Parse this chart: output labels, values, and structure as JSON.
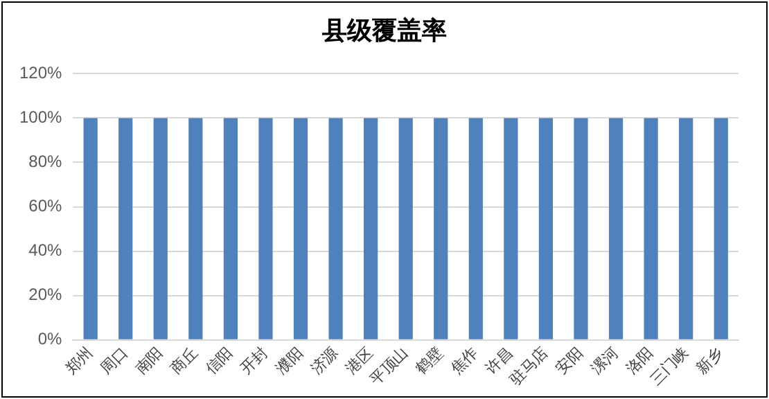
{
  "chart_data": {
    "type": "bar",
    "title": "县级覆盖率",
    "categories": [
      "郑州",
      "周口",
      "南阳",
      "商丘",
      "信阳",
      "开封",
      "濮阳",
      "济源",
      "港区",
      "平顶山",
      "鹤壁",
      "焦作",
      "许昌",
      "驻马店",
      "安阳",
      "漯河",
      "洛阳",
      "三门峡",
      "新乡"
    ],
    "values": [
      100,
      100,
      100,
      100,
      100,
      100,
      100,
      100,
      100,
      100,
      100,
      100,
      100,
      100,
      100,
      100,
      100,
      100,
      100
    ],
    "color": "#4f81bd",
    "ylim": [
      0,
      120
    ],
    "yticks": [
      {
        "value": 0,
        "label": "0%"
      },
      {
        "value": 20,
        "label": "20%"
      },
      {
        "value": 40,
        "label": "40%"
      },
      {
        "value": 60,
        "label": "60%"
      },
      {
        "value": 80,
        "label": "80%"
      },
      {
        "value": 100,
        "label": "100%"
      },
      {
        "value": 120,
        "label": "120%"
      }
    ],
    "grid": "y"
  }
}
